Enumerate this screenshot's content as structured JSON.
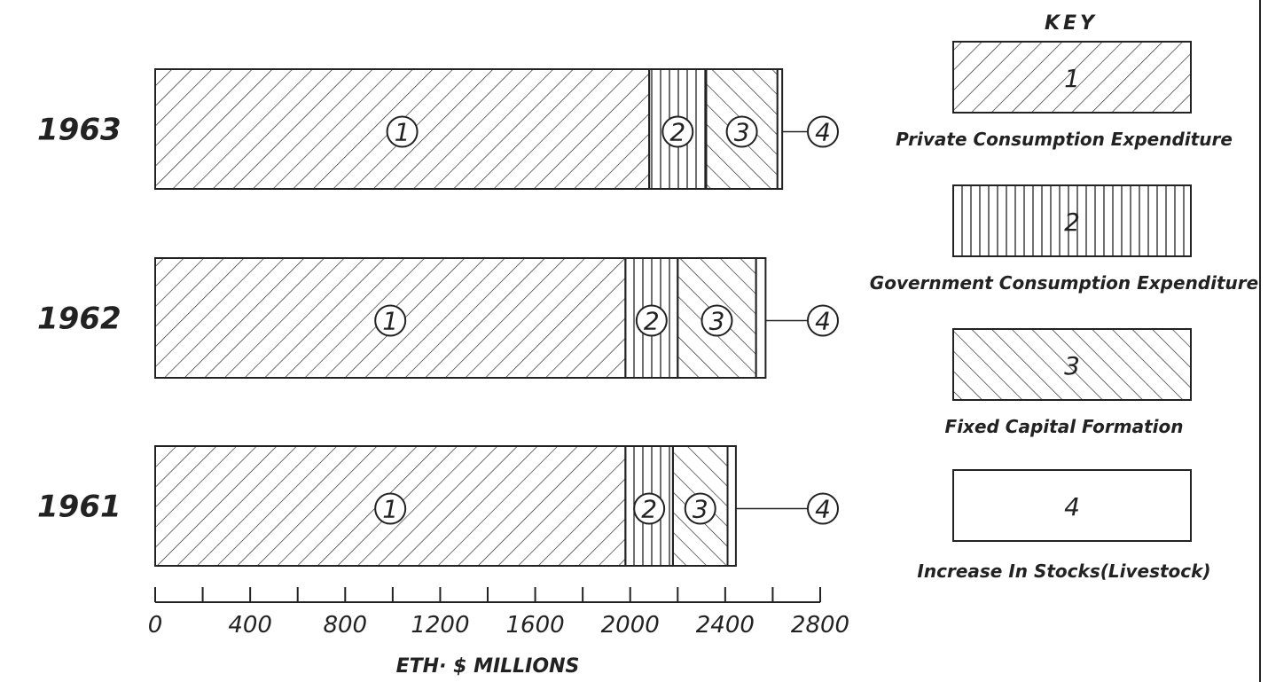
{
  "chart_data": {
    "type": "bar",
    "orientation": "horizontal",
    "stacked": true,
    "categories": [
      "1963",
      "1962",
      "1961"
    ],
    "series": [
      {
        "name": "Private Consumption Expenditure",
        "label": "1",
        "pattern": "diagonal-right",
        "values": [
          2080,
          1980,
          1980
        ]
      },
      {
        "name": "Government Consumption Expenditure",
        "label": "2",
        "pattern": "vertical",
        "values": [
          240,
          220,
          200
        ]
      },
      {
        "name": "Fixed Capital Formation",
        "label": "3",
        "pattern": "diagonal-left",
        "values": [
          300,
          330,
          230
        ]
      },
      {
        "name": "Increase In Stocks(Livestock)",
        "label": "4",
        "pattern": "none",
        "values": [
          20,
          40,
          35
        ]
      }
    ],
    "xlabel": "ETH· $ MILLIONS",
    "xlim": [
      0,
      2800
    ],
    "xticks": [
      "0",
      "400",
      "800",
      "1200",
      "1600",
      "2000",
      "2400",
      "2800"
    ],
    "legend_title": "KEY",
    "legend_position": "right",
    "grid": false
  }
}
